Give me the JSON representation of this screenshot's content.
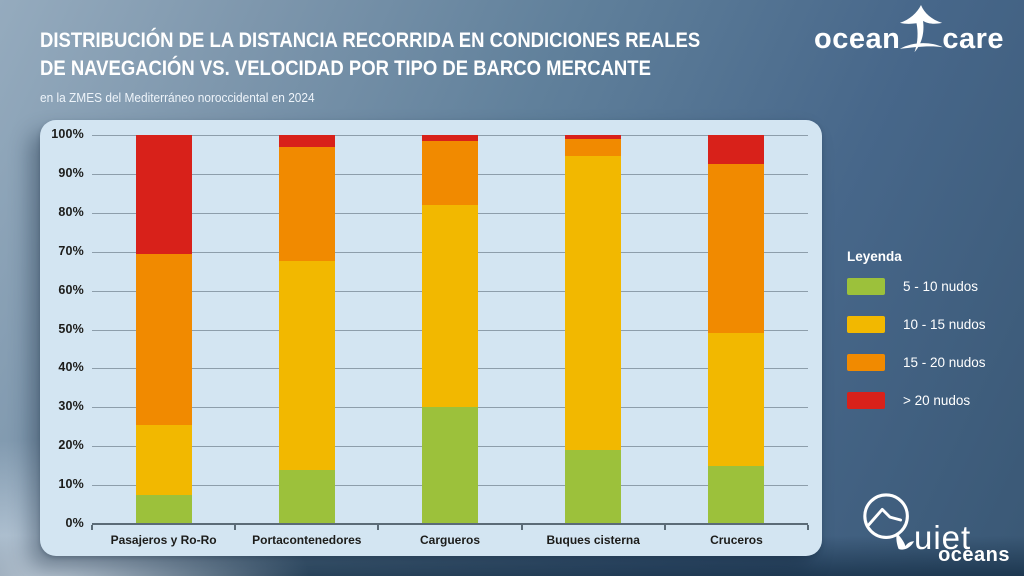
{
  "header": {
    "title_line1": "DISTRIBUCIÓN DE LA DISTANCIA RECORRIDA EN CONDICIONES REALES",
    "title_line2": "DE NAVEGACIÓN VS. VELOCIDAD POR TIPO DE BARCO MERCANTE",
    "subtitle": "en la ZMES del Mediterráneo noroccidental en 2024"
  },
  "logos": {
    "oceancare_left": "ocean",
    "oceancare_right": "care",
    "quiet_top": "uiet",
    "quiet_bottom": "oceans"
  },
  "legend": {
    "title": "Leyenda",
    "items": [
      {
        "label": "5 - 10 nudos",
        "color": "#9cc13b"
      },
      {
        "label": "10 - 15 nudos",
        "color": "#f2b800"
      },
      {
        "label": "15 - 20 nudos",
        "color": "#f18a00"
      },
      {
        "label": "> 20 nudos",
        "color": "#d8211a"
      }
    ]
  },
  "chart_data": {
    "type": "bar",
    "stacked": true,
    "unit": "percent",
    "title": "Distribución de la distancia recorrida en condiciones reales de navegación vs. velocidad por tipo de barco mercante",
    "categories": [
      "Pasajeros y Ro-Ro",
      "Portacontenedores",
      "Cargueros",
      "Buques cisterna",
      "Cruceros"
    ],
    "series": [
      {
        "name": "5 - 10 nudos",
        "color": "#9cc13b",
        "values": [
          7.5,
          14,
          30,
          19,
          15
        ]
      },
      {
        "name": "10 - 15 nudos",
        "color": "#f2b800",
        "values": [
          18,
          53.5,
          52,
          75.5,
          34
        ]
      },
      {
        "name": "15 - 20 nudos",
        "color": "#f18a00",
        "values": [
          44,
          29.5,
          16.5,
          4.5,
          43.5
        ]
      },
      {
        "name": "> 20 nudos",
        "color": "#d8211a",
        "values": [
          30.5,
          3,
          1.5,
          1,
          7.5
        ]
      }
    ],
    "y_ticks": [
      "100%",
      "90%",
      "80%",
      "70%",
      "60%",
      "50%",
      "40%",
      "30%",
      "20%",
      "10%",
      "0%"
    ],
    "ylim": [
      0,
      100
    ],
    "grid": true,
    "legend_position": "right"
  }
}
